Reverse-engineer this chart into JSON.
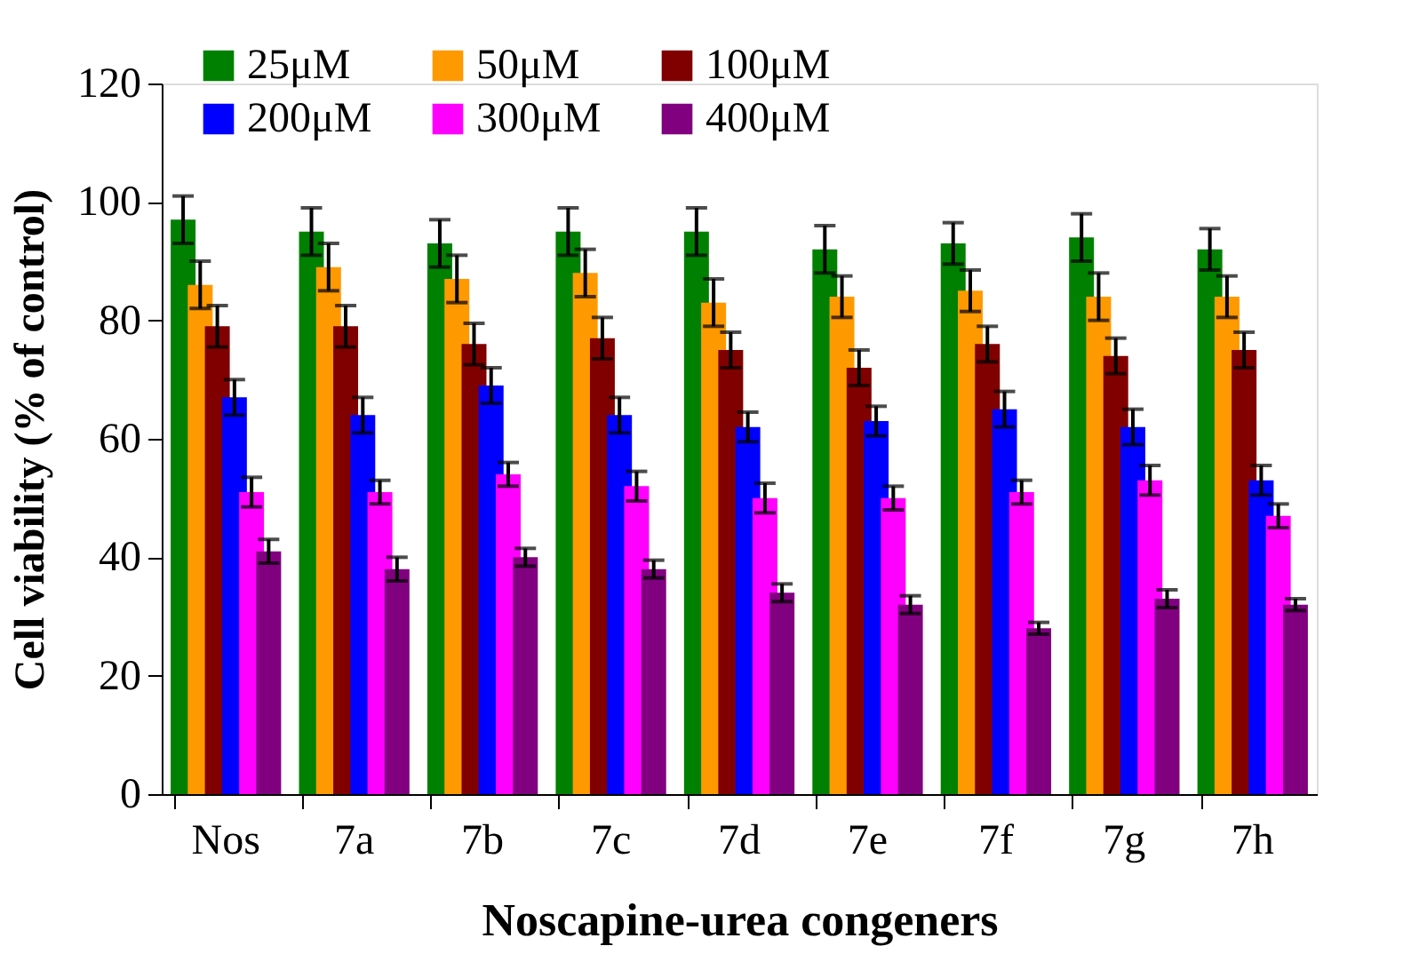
{
  "chart_data": {
    "type": "bar",
    "xlabel": "Noscapine-urea congeners",
    "ylabel": "Cell viability  (% of control)",
    "categories": [
      "Nos",
      "7a",
      "7b",
      "7c",
      "7d",
      "7e",
      "7f",
      "7g",
      "7h"
    ],
    "series": [
      {
        "name": "25μM",
        "color": "#008000",
        "values": [
          97,
          95,
          93,
          95,
          95,
          92,
          93,
          94,
          92
        ],
        "errors": [
          4,
          4,
          4,
          4,
          4,
          4,
          3.5,
          4,
          3.5
        ]
      },
      {
        "name": "50μM",
        "color": "#ff9900",
        "values": [
          86,
          89,
          87,
          88,
          83,
          84,
          85,
          84,
          84
        ],
        "errors": [
          4,
          4,
          4,
          4,
          4,
          3.5,
          3.5,
          4,
          3.5
        ]
      },
      {
        "name": "100μM",
        "color": "#800000",
        "values": [
          79,
          79,
          76,
          77,
          75,
          72,
          76,
          74,
          75
        ],
        "errors": [
          3.5,
          3.5,
          3.5,
          3.5,
          3,
          3,
          3,
          3,
          3
        ]
      },
      {
        "name": "200μM",
        "color": "#0000ff",
        "values": [
          67,
          64,
          69,
          64,
          62,
          63,
          65,
          62,
          53
        ],
        "errors": [
          3,
          3,
          3,
          3,
          2.5,
          2.5,
          3,
          3,
          2.5
        ]
      },
      {
        "name": "300μM",
        "color": "#ff00ff",
        "values": [
          51,
          51,
          54,
          52,
          50,
          50,
          51,
          53,
          47
        ],
        "errors": [
          2.5,
          2,
          2,
          2.5,
          2.5,
          2,
          2,
          2.5,
          2
        ]
      },
      {
        "name": "400μM",
        "color": "#800080",
        "values": [
          41,
          38,
          40,
          38,
          34,
          32,
          28,
          33,
          32
        ],
        "errors": [
          2,
          2,
          1.5,
          1.5,
          1.5,
          1.5,
          1,
          1.5,
          1
        ]
      }
    ],
    "ylim": [
      0,
      120
    ],
    "yticks": [
      0,
      20,
      40,
      60,
      80,
      100,
      120
    ],
    "grid": false,
    "legend": "top"
  }
}
